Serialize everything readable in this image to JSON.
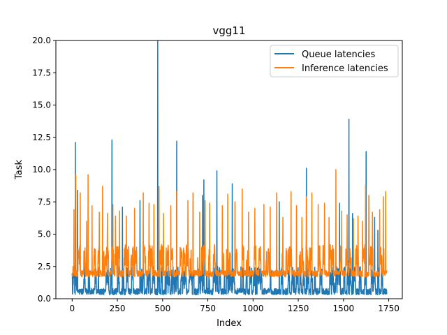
{
  "chart_data": {
    "type": "line",
    "title": "vgg11",
    "xlabel": "Index",
    "ylabel": "Task",
    "xlim": [
      -90,
      1825
    ],
    "ylim": [
      0,
      20
    ],
    "x_ticks": [
      0,
      250,
      500,
      750,
      1000,
      1250,
      1500,
      1750
    ],
    "x_tick_labels": [
      "0",
      "250",
      "500",
      "750",
      "1000",
      "1250",
      "1500",
      "1750"
    ],
    "y_ticks": [
      0,
      2.5,
      5,
      7.5,
      10,
      12.5,
      15,
      17.5,
      20
    ],
    "y_tick_labels": [
      "0.0",
      "2.5",
      "5.0",
      "7.5",
      "10.0",
      "12.5",
      "15.0",
      "17.5",
      "20.0"
    ],
    "grid": false,
    "legend_position": "top-right",
    "n_points": 1740,
    "series": [
      {
        "name": "Queue latencies",
        "color": "#1f77b4",
        "baseline_range": [
          0.3,
          0.8
        ],
        "burst_range": [
          1.0,
          2.5
        ],
        "spikes": [
          {
            "x": 18,
            "y": 12.1
          },
          {
            "x": 30,
            "y": 8.4
          },
          {
            "x": 220,
            "y": 12.3
          },
          {
            "x": 278,
            "y": 7.1
          },
          {
            "x": 375,
            "y": 7.6
          },
          {
            "x": 473,
            "y": 20.0
          },
          {
            "x": 578,
            "y": 12.2
          },
          {
            "x": 720,
            "y": 8.0
          },
          {
            "x": 728,
            "y": 9.2
          },
          {
            "x": 800,
            "y": 9.9
          },
          {
            "x": 885,
            "y": 8.9
          },
          {
            "x": 1145,
            "y": 7.5
          },
          {
            "x": 1295,
            "y": 10.1
          },
          {
            "x": 1478,
            "y": 7.4
          },
          {
            "x": 1530,
            "y": 13.9
          },
          {
            "x": 1550,
            "y": 6.6
          },
          {
            "x": 1625,
            "y": 11.4
          },
          {
            "x": 1672,
            "y": 6.3
          },
          {
            "x": 1690,
            "y": 5.3
          }
        ]
      },
      {
        "name": "Inference latencies",
        "color": "#ff7f0e",
        "baseline_range": [
          1.7,
          2.2
        ],
        "burst_range": [
          2.5,
          4.2
        ],
        "spikes": [
          {
            "x": 5,
            "y": 2.5
          },
          {
            "x": 10,
            "y": 6.9
          },
          {
            "x": 20,
            "y": 9.6
          },
          {
            "x": 45,
            "y": 8.2
          },
          {
            "x": 80,
            "y": 6.0
          },
          {
            "x": 88,
            "y": 9.6
          },
          {
            "x": 110,
            "y": 7.2
          },
          {
            "x": 150,
            "y": 6.7
          },
          {
            "x": 168,
            "y": 8.7
          },
          {
            "x": 195,
            "y": 6.6
          },
          {
            "x": 225,
            "y": 7.3
          },
          {
            "x": 240,
            "y": 6.4
          },
          {
            "x": 262,
            "y": 6.8
          },
          {
            "x": 300,
            "y": 6.4
          },
          {
            "x": 345,
            "y": 7.0
          },
          {
            "x": 393,
            "y": 8.2
          },
          {
            "x": 425,
            "y": 7.4
          },
          {
            "x": 452,
            "y": 7.3
          },
          {
            "x": 480,
            "y": 8.7
          },
          {
            "x": 505,
            "y": 6.6
          },
          {
            "x": 545,
            "y": 7.2
          },
          {
            "x": 578,
            "y": 8.3
          },
          {
            "x": 640,
            "y": 7.6
          },
          {
            "x": 668,
            "y": 8.2
          },
          {
            "x": 705,
            "y": 6.7
          },
          {
            "x": 735,
            "y": 7.6
          },
          {
            "x": 760,
            "y": 7.4
          },
          {
            "x": 830,
            "y": 7.2
          },
          {
            "x": 860,
            "y": 8.1
          },
          {
            "x": 900,
            "y": 7.5
          },
          {
            "x": 940,
            "y": 8.5
          },
          {
            "x": 975,
            "y": 6.7
          },
          {
            "x": 1010,
            "y": 7.0
          },
          {
            "x": 1060,
            "y": 7.3
          },
          {
            "x": 1095,
            "y": 7.1
          },
          {
            "x": 1130,
            "y": 8.2
          },
          {
            "x": 1165,
            "y": 6.3
          },
          {
            "x": 1210,
            "y": 8.3
          },
          {
            "x": 1240,
            "y": 7.2
          },
          {
            "x": 1270,
            "y": 6.3
          },
          {
            "x": 1295,
            "y": 7.9
          },
          {
            "x": 1325,
            "y": 8.2
          },
          {
            "x": 1360,
            "y": 7.3
          },
          {
            "x": 1395,
            "y": 7.4
          },
          {
            "x": 1420,
            "y": 6.3
          },
          {
            "x": 1458,
            "y": 10.0
          },
          {
            "x": 1490,
            "y": 6.8
          },
          {
            "x": 1520,
            "y": 6.5
          },
          {
            "x": 1555,
            "y": 6.2
          },
          {
            "x": 1580,
            "y": 6.4
          },
          {
            "x": 1605,
            "y": 6.0
          },
          {
            "x": 1622,
            "y": 8.8
          },
          {
            "x": 1640,
            "y": 8.0
          },
          {
            "x": 1660,
            "y": 6.7
          },
          {
            "x": 1700,
            "y": 6.9
          },
          {
            "x": 1720,
            "y": 7.9
          },
          {
            "x": 1733,
            "y": 8.3
          }
        ]
      }
    ]
  }
}
